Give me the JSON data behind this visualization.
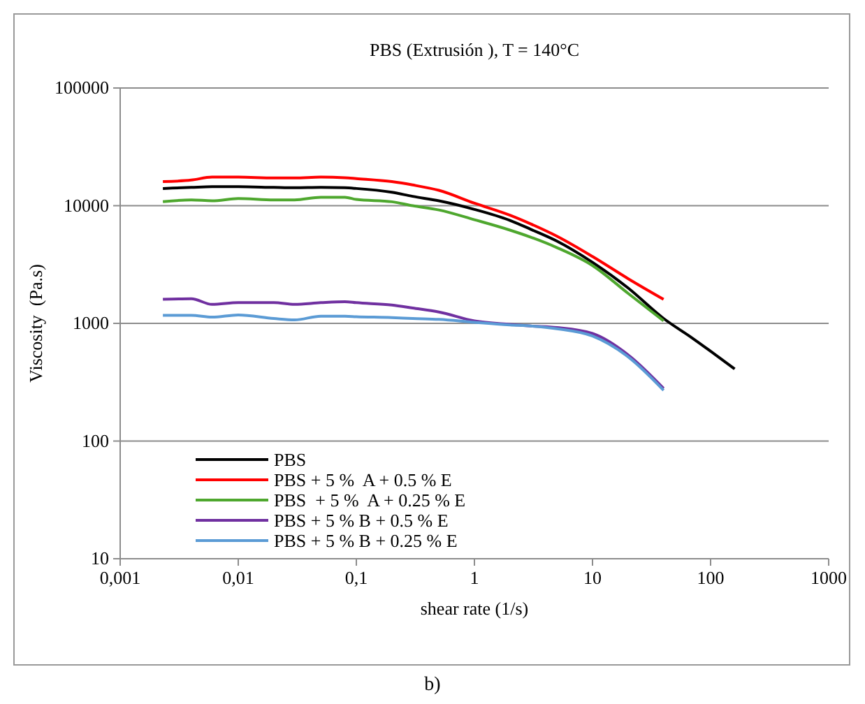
{
  "chart_data": {
    "type": "line",
    "title": "PBS (Extrusión ), T = 140°C",
    "xlabel": "shear rate (1/s)",
    "ylabel": "Viscosity  (Pa.s)",
    "annotations": [
      "b)"
    ],
    "log": "xy",
    "grid": "y",
    "legend": "bottom left",
    "line_style": "solid",
    "marker": "none",
    "x": [
      0.0023,
      0.004,
      0.006,
      0.01,
      0.02,
      0.03,
      0.05,
      0.08,
      0.1,
      0.2,
      0.3,
      0.5,
      1,
      2,
      3,
      5,
      10,
      20,
      40
    ],
    "xlim": [
      0.001,
      1000
    ],
    "xticks": [
      {
        "value": 0.001,
        "label": "0,001"
      },
      {
        "value": 0.01,
        "label": "0,01"
      },
      {
        "value": 0.1,
        "label": "0,1"
      },
      1,
      10,
      100,
      1000
    ],
    "ylim": [
      10,
      100000
    ],
    "yticks": [
      10,
      100,
      1000,
      10000,
      100000
    ],
    "series": [
      {
        "name": "PBS",
        "color": "#000000",
        "x": [
          0.0023,
          0.004,
          0.006,
          0.01,
          0.02,
          0.03,
          0.05,
          0.08,
          0.1,
          0.2,
          0.3,
          0.5,
          1,
          2,
          3,
          5,
          10,
          20,
          40,
          70,
          100,
          160
        ],
        "values": [
          14000,
          14300,
          14500,
          14500,
          14300,
          14200,
          14300,
          14200,
          14000,
          13000,
          12000,
          11000,
          9300,
          7500,
          6300,
          5000,
          3300,
          2000,
          1100,
          750,
          580,
          410
        ]
      },
      {
        "name": "PBS + 5 %  A + 0.5 % E",
        "color": "#ff0000",
        "values": [
          16000,
          16500,
          17500,
          17500,
          17200,
          17200,
          17500,
          17300,
          17000,
          16000,
          15000,
          13500,
          10500,
          8300,
          7000,
          5500,
          3700,
          2400,
          1600
        ]
      },
      {
        "name": "PBS  + 5 %  A + 0.25 % E",
        "color": "#4ea72e",
        "values": [
          10800,
          11200,
          11000,
          11500,
          11200,
          11200,
          11800,
          11800,
          11300,
          10800,
          10000,
          9200,
          7600,
          6200,
          5400,
          4400,
          3100,
          1800,
          1050
        ]
      },
      {
        "name": "PBS + 5 % B + 0.5 % E",
        "color": "#7030a0",
        "values": [
          1600,
          1620,
          1450,
          1500,
          1500,
          1450,
          1500,
          1530,
          1500,
          1430,
          1350,
          1250,
          1050,
          980,
          950,
          920,
          820,
          540,
          280
        ]
      },
      {
        "name": "PBS + 5 % B + 0.25 % E",
        "color": "#5b9bd5",
        "values": [
          1170,
          1170,
          1130,
          1180,
          1100,
          1070,
          1150,
          1150,
          1140,
          1120,
          1100,
          1080,
          1020,
          970,
          950,
          900,
          780,
          520,
          270
        ]
      }
    ]
  }
}
